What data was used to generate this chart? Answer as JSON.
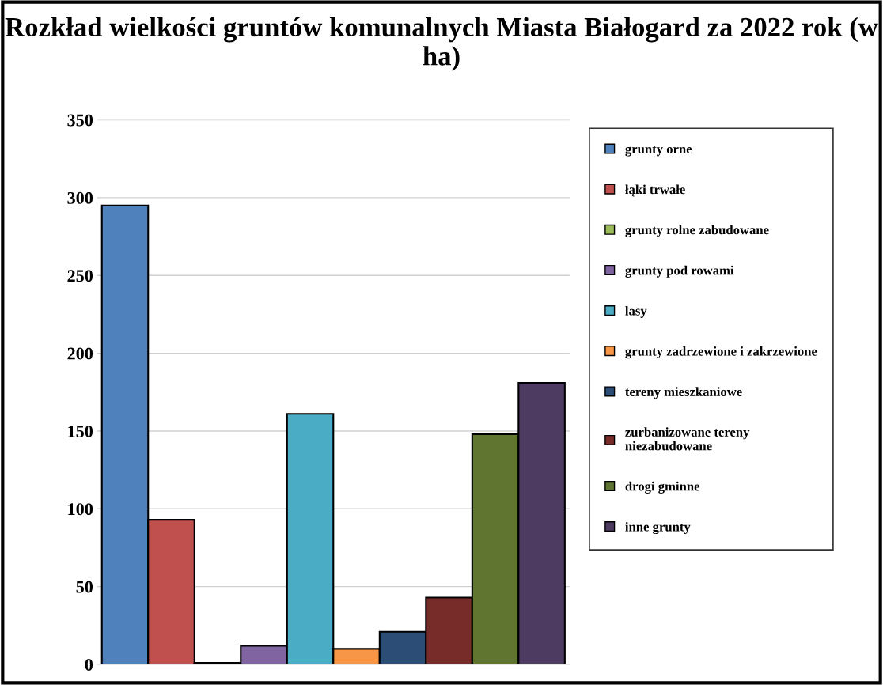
{
  "chart_data": {
    "type": "bar",
    "title": "Rozkład wielkości gruntów komunalnych Miasta Białogard za 2022 rok (w ha)",
    "categories": [
      null
    ],
    "series": [
      {
        "name": "grunty orne",
        "color": "#4f81bd",
        "values": [
          295
        ]
      },
      {
        "name": "łąki trwałe",
        "color": "#c0504d",
        "values": [
          93
        ]
      },
      {
        "name": "grunty rolne zabudowane",
        "color": "#9bbb59",
        "values": [
          1
        ]
      },
      {
        "name": "grunty pod rowami",
        "color": "#8064a2",
        "values": [
          12
        ]
      },
      {
        "name": "lasy",
        "color": "#4bacc6",
        "values": [
          161
        ]
      },
      {
        "name": "grunty zadrzewione i zakrzewione",
        "color": "#f79646",
        "values": [
          10
        ]
      },
      {
        "name": "tereny mieszkaniowe",
        "color": "#2c4d75",
        "values": [
          21
        ]
      },
      {
        "name": "zurbanizowane tereny niezabudowane",
        "color": "#772c2a",
        "values": [
          43
        ]
      },
      {
        "name": "drogi gminne",
        "color": "#5f7530",
        "values": [
          148
        ]
      },
      {
        "name": "inne grunty",
        "color": "#4d3b62",
        "values": [
          181
        ]
      }
    ],
    "ylim": [
      0,
      350
    ],
    "yticks": [
      0,
      50,
      100,
      150,
      200,
      250,
      300,
      350
    ],
    "grid": "y",
    "legend": "right"
  }
}
